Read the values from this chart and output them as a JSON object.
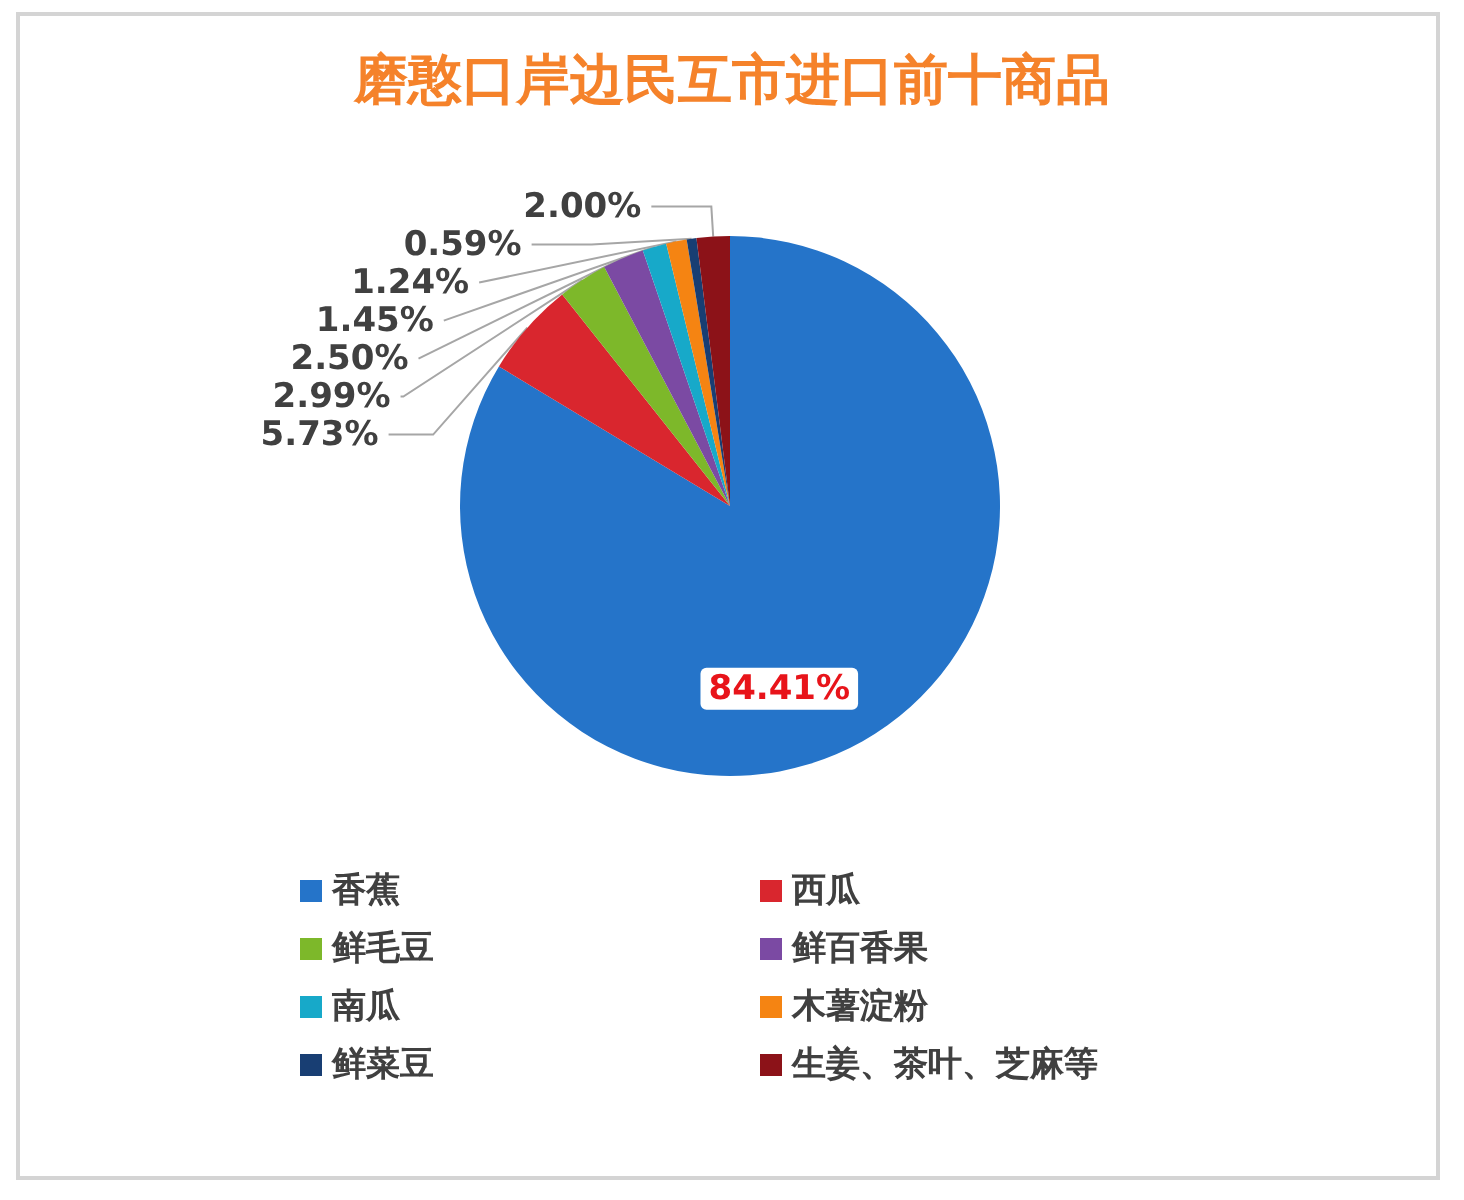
{
  "chart_data": {
    "type": "pie",
    "title": "磨憨口岸边民互市进口前十商品",
    "categories": [
      "香蕉",
      "西瓜",
      "鲜毛豆",
      "鲜百香果",
      "南瓜",
      "木薯淀粉",
      "鲜菜豆",
      "生姜、茶叶、芝麻等"
    ],
    "values": [
      84.41,
      5.73,
      2.99,
      2.5,
      1.45,
      1.24,
      0.59,
      2.0
    ],
    "value_labels": [
      "84.41%",
      "5.73%",
      "2.99%",
      "2.50%",
      "1.45%",
      "1.24%",
      "0.59%",
      "2.00%"
    ],
    "colors": [
      "#2574c9",
      "#d9262e",
      "#7db82a",
      "#7b4aa3",
      "#17a9c9",
      "#f58412",
      "#183e73",
      "#8c1218"
    ],
    "legend": "bottom"
  }
}
